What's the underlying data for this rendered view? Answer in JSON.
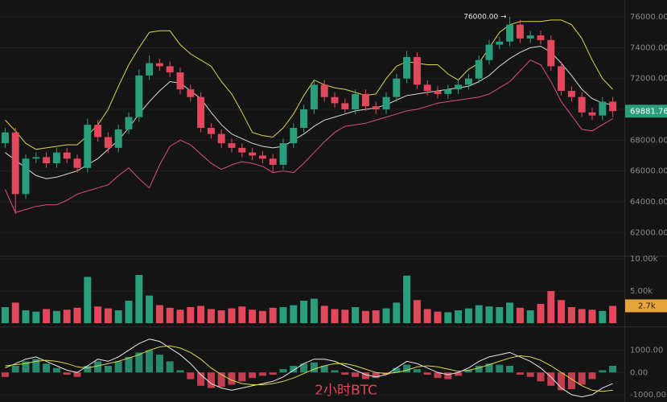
{
  "caption": "2小时BTC",
  "chart_data": [
    {
      "type": "candlestick",
      "up_color": "#2a9d7c",
      "down_color": "#e2475b",
      "open": [
        67800,
        68500,
        64500,
        66800,
        66900,
        66500,
        67200,
        66800,
        66200,
        69000,
        68200,
        67500,
        68700,
        69500,
        72200,
        73000,
        72800,
        72400,
        71300,
        70800,
        68800,
        68400,
        67800,
        67500,
        67200,
        67000,
        66800,
        66400,
        67800,
        68800,
        70000,
        71600,
        70800,
        70400,
        70000,
        71000,
        70200,
        70000,
        70800,
        72000,
        73400,
        71600,
        71200,
        71000,
        71300,
        71600,
        72000,
        73200,
        74200,
        74400,
        75500,
        74600,
        74800,
        74500,
        72800,
        71200,
        70800,
        69800,
        69600,
        70500
      ],
      "high": [
        68800,
        68800,
        67100,
        67200,
        67200,
        67500,
        67500,
        67100,
        69400,
        69300,
        68500,
        69000,
        69800,
        72600,
        73500,
        73300,
        73100,
        72700,
        71600,
        71100,
        69100,
        68700,
        68100,
        67800,
        67500,
        67300,
        67100,
        68100,
        69100,
        70300,
        71900,
        71900,
        71100,
        70700,
        71300,
        71300,
        70500,
        71100,
        72300,
        73800,
        73700,
        71900,
        71500,
        71600,
        71900,
        72300,
        73500,
        74500,
        74700,
        76000,
        75800,
        75100,
        75100,
        74800,
        73100,
        71500,
        71100,
        70100,
        70800,
        70800
      ],
      "low": [
        67500,
        63200,
        64200,
        66500,
        66200,
        66200,
        66500,
        65900,
        65900,
        67900,
        67200,
        67200,
        68400,
        69200,
        71900,
        72500,
        72100,
        71000,
        70500,
        68500,
        68100,
        67500,
        67200,
        66900,
        66700,
        66500,
        65900,
        66100,
        67500,
        68500,
        69700,
        70500,
        70100,
        69700,
        69700,
        69900,
        69700,
        69700,
        70500,
        71700,
        71300,
        70900,
        70700,
        70700,
        71000,
        71300,
        71700,
        72900,
        73900,
        74100,
        74300,
        74300,
        74200,
        72500,
        70900,
        70500,
        69500,
        69300,
        69300,
        69500
      ],
      "close": [
        68500,
        64500,
        66800,
        66900,
        66500,
        67200,
        66800,
        66200,
        69000,
        68200,
        67500,
        68700,
        69500,
        72200,
        73000,
        72800,
        72400,
        71300,
        70800,
        68800,
        68400,
        67800,
        67500,
        67200,
        67000,
        66800,
        66400,
        67800,
        68800,
        70000,
        71600,
        70800,
        70400,
        70000,
        71000,
        70200,
        70000,
        70800,
        72000,
        73400,
        71600,
        71200,
        71000,
        71300,
        71600,
        72000,
        73200,
        74200,
        74400,
        75500,
        74600,
        74800,
        74500,
        72800,
        71200,
        70800,
        69800,
        69600,
        70500,
        69881.76
      ],
      "bands": [
        {
          "color": "#d8d84a",
          "values": [
            69300,
            68600,
            67800,
            67400,
            67500,
            67600,
            67700,
            67700,
            68300,
            69000,
            70000,
            71500,
            72900,
            74000,
            75000,
            75100,
            75100,
            74200,
            73600,
            73200,
            72800,
            71800,
            71000,
            69800,
            68500,
            68300,
            68200,
            68800,
            69700,
            70900,
            71900,
            71600,
            71400,
            71300,
            71100,
            70900,
            71000,
            72000,
            72800,
            73100,
            73000,
            72900,
            72900,
            72300,
            71900,
            72600,
            73000,
            74000,
            75000,
            75500,
            75700,
            75700,
            75700,
            75800,
            75800,
            75500,
            74600,
            73200,
            72000,
            71300
          ]
        },
        {
          "color": "#d9d9d9",
          "values": [
            67200,
            66700,
            66200,
            65700,
            65500,
            65600,
            65800,
            66000,
            66400,
            66800,
            67400,
            68000,
            68800,
            69700,
            70500,
            71200,
            71800,
            71700,
            71200,
            70700,
            69800,
            69000,
            68400,
            68100,
            67800,
            67600,
            67500,
            67600,
            68000,
            68400,
            68900,
            69300,
            69500,
            69700,
            69900,
            70000,
            70100,
            70300,
            70600,
            70900,
            71000,
            71100,
            71200,
            71300,
            71400,
            71500,
            71800,
            72200,
            72800,
            73300,
            73700,
            74000,
            74100,
            73700,
            73000,
            72200,
            71300,
            70700,
            70400,
            70300
          ]
        },
        {
          "color": "#d94f8a",
          "values": [
            64800,
            63300,
            63500,
            63700,
            63800,
            63800,
            64100,
            64500,
            64700,
            64900,
            65100,
            65700,
            66200,
            65500,
            64900,
            66400,
            67600,
            68000,
            67700,
            67100,
            66500,
            66100,
            66400,
            66600,
            66500,
            66300,
            65900,
            66000,
            65900,
            66500,
            67200,
            67900,
            68500,
            68900,
            69000,
            69100,
            69300,
            69500,
            69700,
            69900,
            70000,
            70200,
            70400,
            70500,
            70600,
            70700,
            70800,
            71000,
            71400,
            71800,
            72500,
            73200,
            72900,
            71800,
            70500,
            69600,
            68700,
            68600,
            69000,
            69400
          ]
        }
      ],
      "ylim": [
        60500,
        77100
      ],
      "yticks": [
        {
          "value": 62000,
          "label": "62000.00"
        },
        {
          "value": 64000,
          "label": "64000.00"
        },
        {
          "value": 66000,
          "label": "66000.00"
        },
        {
          "value": 68000,
          "label": "68000.00"
        },
        {
          "value": 70000,
          "label": "70000.00"
        },
        {
          "value": 72000,
          "label": "72000.00"
        },
        {
          "value": 74000,
          "label": "74000.00"
        },
        {
          "value": 76000,
          "label": "76000.00"
        }
      ],
      "annotation": "76000.00 →",
      "price_tag": {
        "value": 69881.76,
        "label": "69881.76"
      }
    },
    {
      "type": "bar",
      "values": [
        2500,
        3200,
        2000,
        1800,
        2200,
        1900,
        2100,
        2400,
        7200,
        2600,
        2300,
        2000,
        3500,
        7500,
        4300,
        2800,
        2400,
        2100,
        2500,
        2700,
        2200,
        2000,
        2300,
        2600,
        2100,
        1900,
        2400,
        2500,
        2800,
        3500,
        3800,
        2700,
        2200,
        2100,
        2500,
        1900,
        2000,
        2300,
        3200,
        7400,
        3600,
        2200,
        1800,
        1700,
        2000,
        2300,
        2800,
        2600,
        2500,
        3200,
        2400,
        2000,
        3000,
        5000,
        3600,
        2500,
        2200,
        2100,
        1900,
        2700
      ],
      "ylim": [
        0,
        10500
      ],
      "yticks": [
        {
          "value": 5000,
          "label": "5.00k"
        },
        {
          "value": 10000,
          "label": "10.00k"
        }
      ],
      "value_tag": {
        "value": 2700,
        "label": "2.7k"
      }
    },
    {
      "type": "macd",
      "up_color": "#2a9d7c",
      "down_color": "#e2475b",
      "values": [
        -200,
        300,
        500,
        600,
        400,
        200,
        -100,
        -200,
        300,
        500,
        300,
        500,
        700,
        900,
        1000,
        800,
        500,
        100,
        -300,
        -600,
        -700,
        -650,
        -550,
        -400,
        -250,
        -150,
        -100,
        150,
        300,
        400,
        450,
        300,
        100,
        -100,
        -200,
        -300,
        -250,
        -100,
        200,
        350,
        150,
        -100,
        -250,
        -300,
        -150,
        100,
        300,
        400,
        350,
        300,
        -100,
        -200,
        -400,
        -600,
        -800,
        -750,
        -550,
        -300,
        100,
        300
      ],
      "series": [
        {
          "color": "#e8e8e8",
          "values": [
            200,
            400,
            600,
            700,
            500,
            300,
            100,
            0,
            300,
            600,
            500,
            700,
            1000,
            1300,
            1500,
            1400,
            1100,
            800,
            400,
            -100,
            -500,
            -700,
            -800,
            -700,
            -600,
            -500,
            -400,
            -200,
            100,
            400,
            600,
            600,
            500,
            300,
            100,
            -100,
            -200,
            -100,
            200,
            500,
            400,
            200,
            0,
            -100,
            0,
            200,
            500,
            700,
            800,
            900,
            700,
            500,
            200,
            -200,
            -700,
            -1000,
            -1100,
            -1000,
            -700,
            -500
          ]
        },
        {
          "color": "#d8d84a",
          "values": [
            300,
            350,
            400,
            500,
            550,
            500,
            400,
            250,
            200,
            300,
            400,
            500,
            650,
            800,
            1000,
            1150,
            1200,
            1100,
            900,
            600,
            200,
            -100,
            -350,
            -500,
            -550,
            -550,
            -500,
            -400,
            -250,
            -50,
            150,
            300,
            400,
            400,
            300,
            150,
            0,
            -50,
            0,
            100,
            250,
            300,
            250,
            150,
            50,
            100,
            200,
            350,
            500,
            650,
            750,
            700,
            550,
            300,
            0,
            -300,
            -600,
            -800,
            -850,
            -800
          ]
        }
      ],
      "ylim": [
        -1330,
        2000
      ],
      "yticks": [
        {
          "value": -1000,
          "label": "-1000.00"
        },
        {
          "value": 0,
          "label": "0.00"
        },
        {
          "value": 1000,
          "label": "1000.00"
        }
      ]
    }
  ]
}
